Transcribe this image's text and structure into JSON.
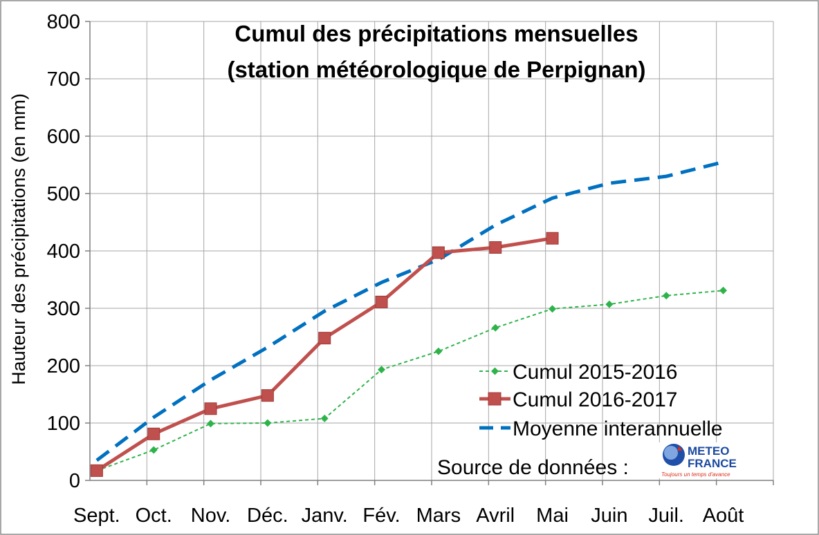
{
  "chart_data": {
    "type": "line",
    "title": [
      "Cumul des précipitations mensuelles",
      "(station météorologique de Perpignan)"
    ],
    "xlabel": "",
    "ylabel": "Hauteur des précipitations (en mm)",
    "ylim": [
      0,
      800
    ],
    "yticks": [
      "0",
      "100",
      "200",
      "300",
      "400",
      "500",
      "600",
      "700",
      "800"
    ],
    "grid": true,
    "legend_position": "bottom-right",
    "categories": [
      "Sept.",
      "Oct.",
      "Nov.",
      "Déc.",
      "Janv.",
      "Fév.",
      "Mars",
      "Avril",
      "Mai",
      "Juin",
      "Juil.",
      "Août"
    ],
    "series": [
      {
        "name": "Cumul 2015-2016",
        "style": "dotted-diamond",
        "color": "#2eb34a",
        "values": [
          17,
          53,
          99,
          100,
          108,
          193,
          225,
          266,
          299,
          307,
          322,
          331
        ]
      },
      {
        "name": "Cumul 2016-2017",
        "style": "solid-square",
        "color": "#c0504d",
        "values": [
          17,
          81,
          125,
          148,
          248,
          311,
          397,
          406,
          422,
          null,
          null,
          null
        ]
      },
      {
        "name": "Moyenne interannuelle",
        "style": "dashed",
        "color": "#0070c0",
        "values": [
          35,
          110,
          175,
          232,
          295,
          345,
          385,
          445,
          492,
          518,
          530,
          555
        ]
      }
    ],
    "source_label": "Source de données :",
    "logo": {
      "name": "meteo-france-logo",
      "line1": "METEO",
      "line2": "FRANCE",
      "tagline": "Toujours un temps d'avance"
    }
  }
}
